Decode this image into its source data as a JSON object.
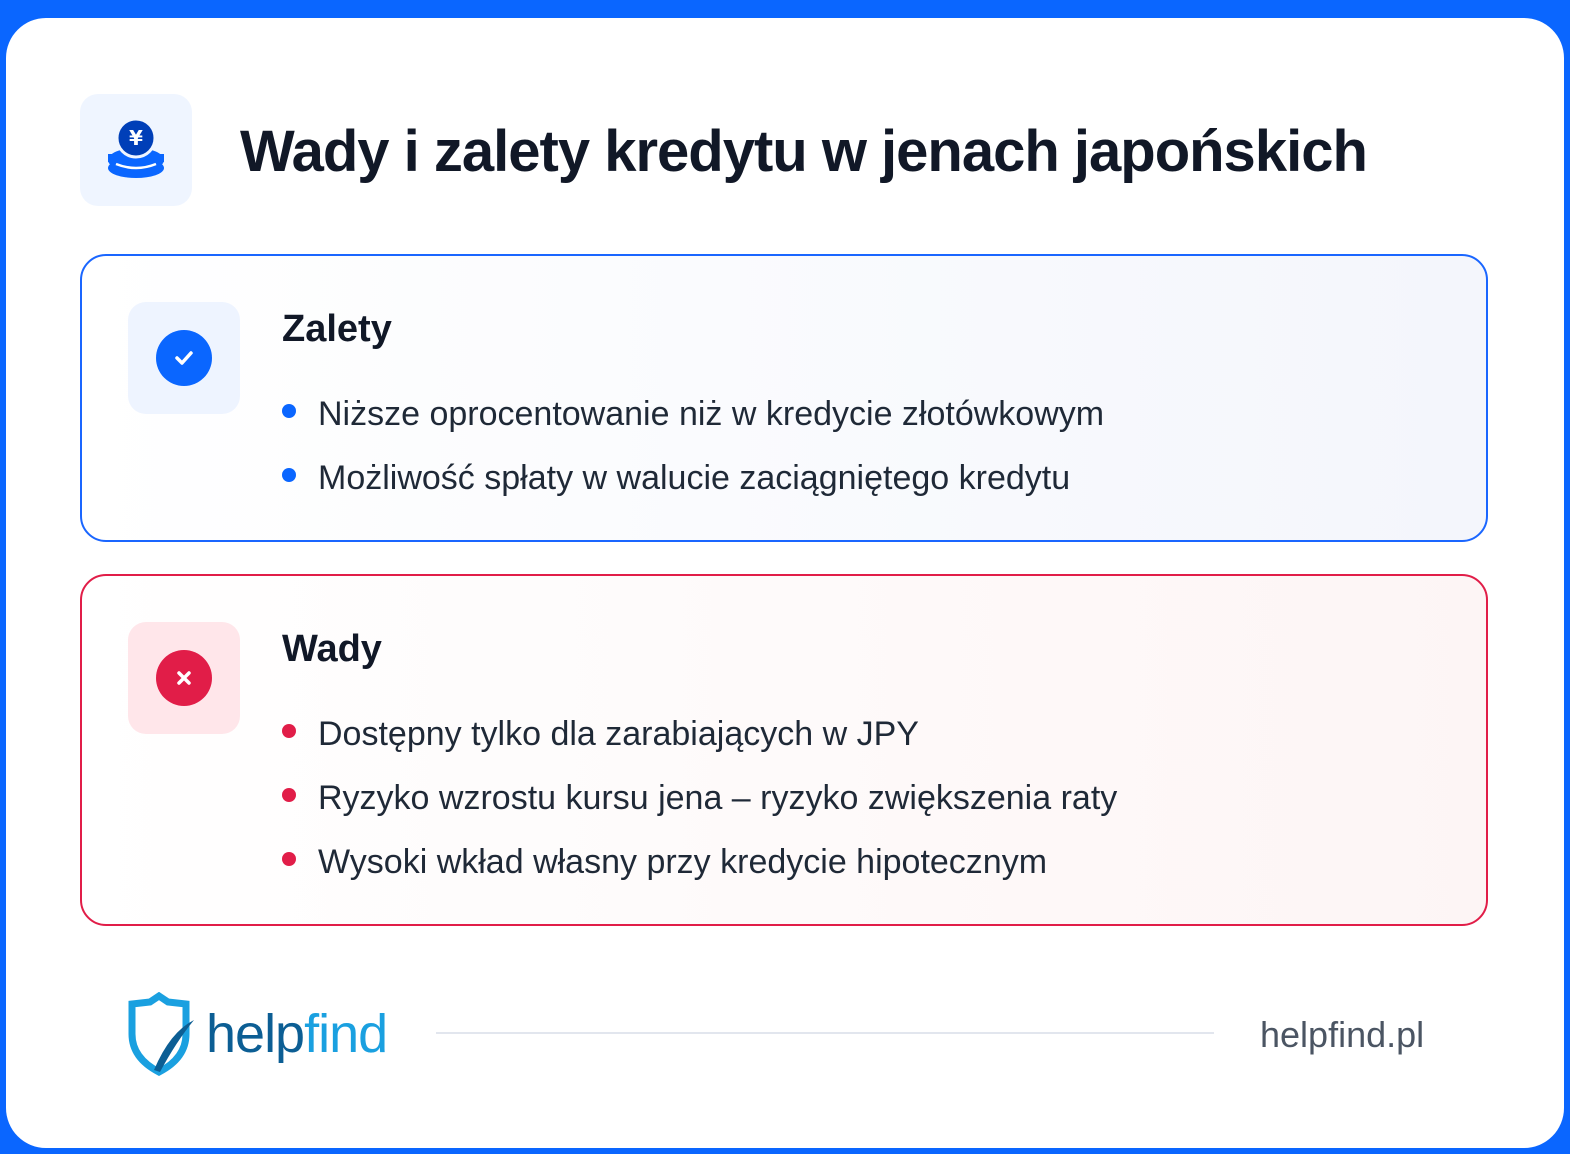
{
  "title": "Wady i zalety kredytu w jenach japońskich",
  "header_icon": "yen-coin-icon",
  "pros": {
    "heading": "Zalety",
    "icon": "check-icon",
    "color": "#1a66ff",
    "items": [
      "Niższe oprocentowanie niż w kredycie złotówkowym",
      "Możliwość spłaty w walucie zaciągniętego kredytu"
    ]
  },
  "cons": {
    "heading": "Wady",
    "icon": "x-icon",
    "color": "#e11d48",
    "items": [
      "Dostępny tylko dla zarabiających w JPY",
      "Ryzyko wzrostu kursu jena – ryzyko zwiększenia raty",
      "Wysoki wkład własny przy kredycie hipotecznym"
    ]
  },
  "footer": {
    "logo_a": "help",
    "logo_b": "find",
    "url": "helpfind.pl"
  }
}
